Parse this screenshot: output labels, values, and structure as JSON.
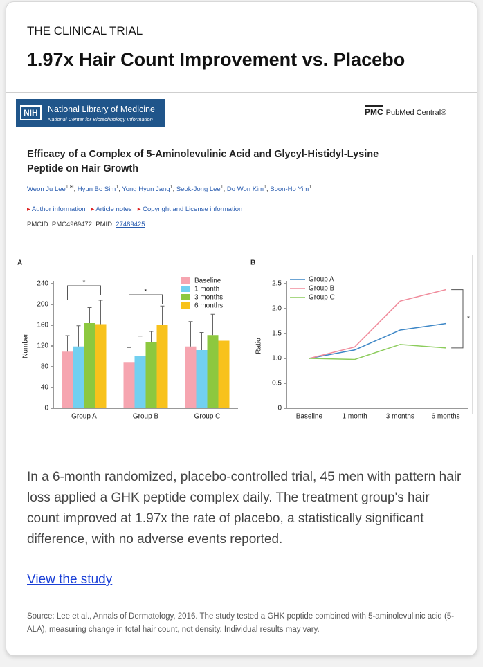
{
  "header": {
    "kicker": "THE CLINICAL TRIAL",
    "title": "1.97x Hair Count Improvement vs. Placebo"
  },
  "source_banner": {
    "nih_badge": "NIH",
    "library": "National Library of Medicine",
    "center": "National Center for Biotechnology Information",
    "pmc_badge": "PMC",
    "pmc_name": "PubMed Central®"
  },
  "article": {
    "title": "Efficacy of a Complex of 5-Aminolevulinic Acid and Glycyl-Histidyl-Lysine Peptide on Hair Growth",
    "authors": [
      {
        "name": "Weon Ju Lee",
        "sup": "1,✉"
      },
      {
        "name": "Hyun Bo Sim",
        "sup": "1"
      },
      {
        "name": "Yong Hyun Jang",
        "sup": "1"
      },
      {
        "name": "Seok-Jong Lee",
        "sup": "1"
      },
      {
        "name": "Do Won Kim",
        "sup": "1"
      },
      {
        "name": "Soon-Ho Yim",
        "sup": "1"
      }
    ],
    "links": [
      "Author information",
      "Article notes",
      "Copyright and License information"
    ],
    "pmcid": "PMCID: PMC4969472",
    "pmid_label": "PMID:",
    "pmid": "27489425"
  },
  "chart_data": [
    {
      "type": "bar",
      "panel": "A",
      "ylabel": "Number",
      "categories": [
        "Group A",
        "Group B",
        "Group C"
      ],
      "series": [
        {
          "name": "Baseline",
          "color": "#f6a5b0",
          "values": [
            109,
            89,
            119
          ],
          "errors": [
            31,
            28,
            48
          ]
        },
        {
          "name": "1 month",
          "color": "#72d0f0",
          "values": [
            119,
            101,
            112
          ],
          "errors": [
            40,
            38,
            34
          ]
        },
        {
          "name": "3 months",
          "color": "#8dc83f",
          "values": [
            164,
            128,
            141
          ],
          "errors": [
            30,
            20,
            40
          ]
        },
        {
          "name": "6 months",
          "color": "#f8c21c",
          "values": [
            162,
            161,
            130
          ],
          "errors": [
            46,
            36,
            40
          ]
        }
      ],
      "ylim": [
        0,
        240
      ],
      "yticks": [
        0,
        40,
        80,
        120,
        160,
        200,
        240
      ],
      "significance": [
        "*",
        "*"
      ]
    },
    {
      "type": "line",
      "panel": "B",
      "ylabel": "Ratio",
      "categories": [
        "Baseline",
        "1 month",
        "3 months",
        "6 months"
      ],
      "series": [
        {
          "name": "Group A",
          "color": "#3c86c6",
          "values": [
            1.0,
            1.17,
            1.57,
            1.7
          ]
        },
        {
          "name": "Group B",
          "color": "#f08c9c",
          "values": [
            1.0,
            1.23,
            2.15,
            2.38
          ]
        },
        {
          "name": "Group C",
          "color": "#8ccc5c",
          "values": [
            1.0,
            0.98,
            1.28,
            1.21
          ]
        }
      ],
      "ylim": [
        0,
        2.5
      ],
      "yticks": [
        0,
        0.5,
        {
          "value": 1,
          "label": "1.0"
        },
        1.5,
        {
          "value": 2,
          "label": "2.0"
        },
        2.5
      ],
      "significance": "*"
    }
  ],
  "body": "In a 6-month randomized, placebo-controlled trial, 45 men with pattern hair loss applied a GHK peptide complex daily. The treatment group's hair count improved at 1.97x the rate of placebo, a statistically significant difference, with no adverse events reported.",
  "cta": "View the study",
  "footnote": "Source: Lee et al., Annals of Dermatology, 2016. The study tested a GHK peptide combined with 5-aminolevulinic acid (5-ALA), measuring change in total hair count, not density. Individual results may vary."
}
